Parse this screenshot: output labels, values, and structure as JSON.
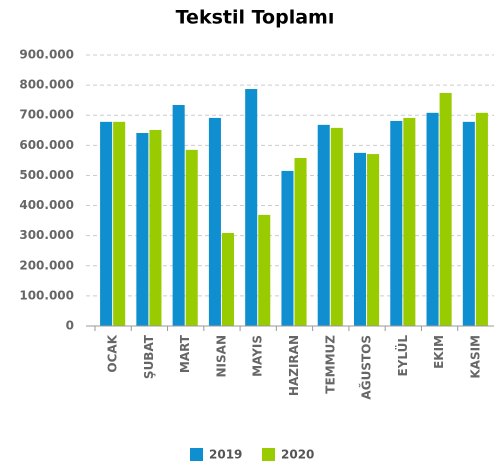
{
  "chart_data": {
    "type": "bar",
    "title": "Tekstil Toplamı",
    "categories": [
      "OCAK",
      "ŞUBAT",
      "MART",
      "NISAN",
      "MAYIS",
      "HAZIRAN",
      "TEMMUZ",
      "AĞUSTOS",
      "EYLÜL",
      "EKIM",
      "KASIM"
    ],
    "series": [
      {
        "name": "2019",
        "color": "#0f8fcf",
        "values": [
          678000,
          641000,
          734000,
          691000,
          787000,
          515000,
          668000,
          575000,
          681000,
          708000,
          678000
        ]
      },
      {
        "name": "2020",
        "color": "#99cc00",
        "values": [
          678000,
          651000,
          585000,
          309000,
          369000,
          558000,
          658000,
          571000,
          691000,
          774000,
          708000
        ]
      }
    ],
    "ylim": [
      0,
      900000
    ],
    "yticks": [
      0,
      {
        "value": 100000,
        "label": "100.000"
      },
      {
        "value": 200000,
        "label": "200.000"
      },
      {
        "value": 300000,
        "label": "300.000"
      },
      {
        "value": 400000,
        "label": "400.000"
      },
      {
        "value": 500000,
        "label": "500.000"
      },
      {
        "value": 600000,
        "label": "600.000"
      },
      {
        "value": 700000,
        "label": "700.000"
      },
      {
        "value": 800000,
        "label": "800.000"
      },
      {
        "value": 900000,
        "label": "900.000"
      }
    ],
    "grid": true,
    "legend": "bottom"
  }
}
